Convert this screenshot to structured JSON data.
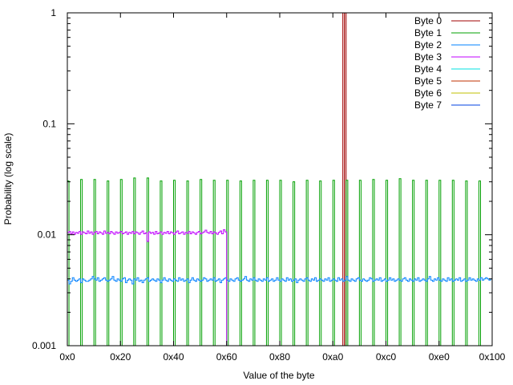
{
  "chart_data": {
    "type": "line",
    "title": "",
    "xlabel": "Value of the byte",
    "ylabel": "Probability (log scale)",
    "xlim": [
      0,
      256
    ],
    "ylim": [
      0.001,
      1
    ],
    "yscale": "log",
    "grid": false,
    "legend_position": "top-right",
    "x_ticks": [
      {
        "value": 0,
        "label": "0x0"
      },
      {
        "value": 32,
        "label": "0x20"
      },
      {
        "value": 64,
        "label": "0x40"
      },
      {
        "value": 96,
        "label": "0x60"
      },
      {
        "value": 128,
        "label": "0x80"
      },
      {
        "value": 160,
        "label": "0xa0"
      },
      {
        "value": 192,
        "label": "0xc0"
      },
      {
        "value": 224,
        "label": "0xe0"
      },
      {
        "value": 256,
        "label": "0x100"
      }
    ],
    "y_ticks": [
      {
        "value": 0.001,
        "label": "0.001"
      },
      {
        "value": 0.01,
        "label": "0.01"
      },
      {
        "value": 0.1,
        "label": "0.1"
      },
      {
        "value": 1,
        "label": "1"
      }
    ],
    "series": [
      {
        "name": "Byte 0",
        "color": "#a00000",
        "spikes": [
          {
            "x": 166,
            "y": 1
          },
          {
            "x": 167,
            "y": 1
          }
        ]
      },
      {
        "name": "Byte 1",
        "color": "#00a000",
        "spikes": [
          {
            "x": 0,
            "y": 0.0305
          },
          {
            "x": 8,
            "y": 0.0315
          },
          {
            "x": 16,
            "y": 0.0315
          },
          {
            "x": 24,
            "y": 0.0305
          },
          {
            "x": 32,
            "y": 0.0315
          },
          {
            "x": 40,
            "y": 0.0325
          },
          {
            "x": 48,
            "y": 0.0325
          },
          {
            "x": 56,
            "y": 0.0305
          },
          {
            "x": 64,
            "y": 0.031
          },
          {
            "x": 72,
            "y": 0.0305
          },
          {
            "x": 80,
            "y": 0.0315
          },
          {
            "x": 88,
            "y": 0.031
          },
          {
            "x": 96,
            "y": 0.031
          },
          {
            "x": 104,
            "y": 0.0305
          },
          {
            "x": 112,
            "y": 0.031
          },
          {
            "x": 120,
            "y": 0.031
          },
          {
            "x": 128,
            "y": 0.031
          },
          {
            "x": 136,
            "y": 0.03
          },
          {
            "x": 144,
            "y": 0.031
          },
          {
            "x": 152,
            "y": 0.0305
          },
          {
            "x": 160,
            "y": 0.031
          },
          {
            "x": 168,
            "y": 0.031
          },
          {
            "x": 176,
            "y": 0.031
          },
          {
            "x": 184,
            "y": 0.0315
          },
          {
            "x": 192,
            "y": 0.031
          },
          {
            "x": 200,
            "y": 0.032
          },
          {
            "x": 208,
            "y": 0.031
          },
          {
            "x": 216,
            "y": 0.031
          },
          {
            "x": 224,
            "y": 0.031
          },
          {
            "x": 232,
            "y": 0.031
          },
          {
            "x": 240,
            "y": 0.0305
          },
          {
            "x": 248,
            "y": 0.0305
          }
        ]
      },
      {
        "name": "Byte 2",
        "color": "#0080ff",
        "values": [
          0.0039,
          0.0036,
          0.0038,
          0.0041,
          0.0039,
          0.0038,
          0.0039,
          0.004,
          0.0037,
          0.004,
          0.0039,
          0.0038,
          0.0038,
          0.0039,
          0.004,
          0.0042,
          0.004,
          0.0039,
          0.0041,
          0.0038,
          0.0039,
          0.004,
          0.0041,
          0.0039,
          0.0038,
          0.0039,
          0.004,
          0.0042,
          0.0039,
          0.0038,
          0.004,
          0.0039,
          0.0038,
          0.004,
          0.0041,
          0.0037,
          0.0039,
          0.004,
          0.0039,
          0.0036,
          0.004,
          0.0039,
          0.0041,
          0.0038,
          0.0039,
          0.0037,
          0.0039,
          0.004,
          0.0041,
          0.0038,
          0.0039,
          0.004,
          0.0039,
          0.0038,
          0.004,
          0.0039,
          0.0037,
          0.0039,
          0.0041,
          0.0039,
          0.0038,
          0.004,
          0.0039,
          0.0038,
          0.004,
          0.0039,
          0.0038,
          0.0041,
          0.0039,
          0.004,
          0.0038,
          0.0039,
          0.004,
          0.0037,
          0.0039,
          0.0041,
          0.0039,
          0.0038,
          0.004,
          0.0039,
          0.0038,
          0.0039,
          0.0041,
          0.004,
          0.0038,
          0.0039,
          0.004,
          0.0039,
          0.0041,
          0.0038,
          0.0039,
          0.004,
          0.0037,
          0.0039,
          0.004,
          0.0041,
          0.0039,
          0.0038,
          0.004,
          0.0039,
          0.0038,
          0.004,
          0.0041,
          0.0039,
          0.0038,
          0.0039,
          0.004,
          0.0042,
          0.0039,
          0.0038,
          0.004,
          0.0039,
          0.0041,
          0.0039,
          0.0038,
          0.004,
          0.0039,
          0.0038,
          0.004,
          0.0039,
          0.0041,
          0.0038,
          0.0039,
          0.004,
          0.0038,
          0.0039,
          0.0041,
          0.0039,
          0.0038,
          0.004,
          0.0039,
          0.0038,
          0.0041,
          0.0039,
          0.004,
          0.0038,
          0.0039,
          0.004,
          0.0037,
          0.0039,
          0.004,
          0.0039,
          0.0038,
          0.004,
          0.0041,
          0.0039,
          0.0038,
          0.004,
          0.0039,
          0.0041,
          0.0038,
          0.0039,
          0.004,
          0.0039,
          0.0038,
          0.004,
          0.0039,
          0.0041,
          0.0038,
          0.0039,
          0.004,
          0.0039,
          0.0038,
          0.0041,
          0.0039,
          0.004,
          0.0038,
          0.0039,
          0.0042,
          0.0039,
          0.0038,
          0.004,
          0.0039,
          0.0038,
          0.004,
          0.0041,
          0.0039,
          0.0038,
          0.004,
          0.0039,
          0.0038,
          0.0039,
          0.0041,
          0.004,
          0.0038,
          0.0039,
          0.004,
          0.0039,
          0.0041,
          0.0038,
          0.0039,
          0.004,
          0.0038,
          0.0039,
          0.0041,
          0.0039,
          0.004,
          0.0038,
          0.0039,
          0.004,
          0.0039,
          0.0038,
          0.004,
          0.0041,
          0.0039,
          0.0038,
          0.004,
          0.0039,
          0.0038,
          0.004,
          0.0039,
          0.0041,
          0.0038,
          0.0039,
          0.004,
          0.0039,
          0.0038,
          0.004,
          0.0042,
          0.0039,
          0.0038,
          0.004,
          0.0039,
          0.0041,
          0.0039,
          0.0038,
          0.004,
          0.0039,
          0.0038,
          0.0041,
          0.0039,
          0.004,
          0.0038,
          0.0039,
          0.004,
          0.0039,
          0.0041,
          0.0038,
          0.0039,
          0.004,
          0.0038,
          0.0039,
          0.0041,
          0.0039,
          0.004,
          0.0039,
          0.0038,
          0.004,
          0.0039,
          0.0041,
          0.0039,
          0.004,
          0.0041,
          0.004,
          0.0039,
          0.004
        ]
      },
      {
        "name": "Byte 3",
        "color": "#c000ff",
        "values": [
          0.0104,
          0.0107,
          0.0102,
          0.0106,
          0.0101,
          0.0105,
          0.0103,
          0.0107,
          0.0101,
          0.0106,
          0.0104,
          0.0102,
          0.0108,
          0.0103,
          0.0106,
          0.0101,
          0.0105,
          0.0107,
          0.0102,
          0.0106,
          0.0104,
          0.0101,
          0.0108,
          0.0103,
          0.0105,
          0.0102,
          0.0107,
          0.0104,
          0.0101,
          0.0106,
          0.0103,
          0.0105,
          0.0107,
          0.0102,
          0.0104,
          0.0106,
          0.0101,
          0.0105,
          0.0103,
          0.0107,
          0.0102,
          0.0106,
          0.0104,
          0.0101,
          0.0105,
          0.0108,
          0.0102,
          0.0104,
          0.0087,
          0.0106,
          0.0103,
          0.0105,
          0.0101,
          0.0107,
          0.0102,
          0.0104,
          0.0106,
          0.0101,
          0.0105,
          0.0103,
          0.0107,
          0.0102,
          0.0106,
          0.0104,
          0.0101,
          0.0105,
          0.0108,
          0.0102,
          0.0104,
          0.0106,
          0.0101,
          0.0105,
          0.0103,
          0.0107,
          0.0102,
          0.0106,
          0.0104,
          0.0101,
          0.0105,
          0.0107,
          0.0102,
          0.0104,
          0.0106,
          0.011,
          0.0105,
          0.0103,
          0.0107,
          0.0102,
          0.0106,
          0.0104,
          0.0101,
          0.0105,
          0.0108,
          0.0102,
          0.0111,
          0.0106
        ]
      },
      {
        "name": "Byte 4",
        "color": "#00e0e0",
        "values": []
      },
      {
        "name": "Byte 5",
        "color": "#c03000",
        "values": []
      },
      {
        "name": "Byte 6",
        "color": "#c0c000",
        "values": []
      },
      {
        "name": "Byte 7",
        "color": "#0040e0",
        "values": []
      }
    ]
  }
}
